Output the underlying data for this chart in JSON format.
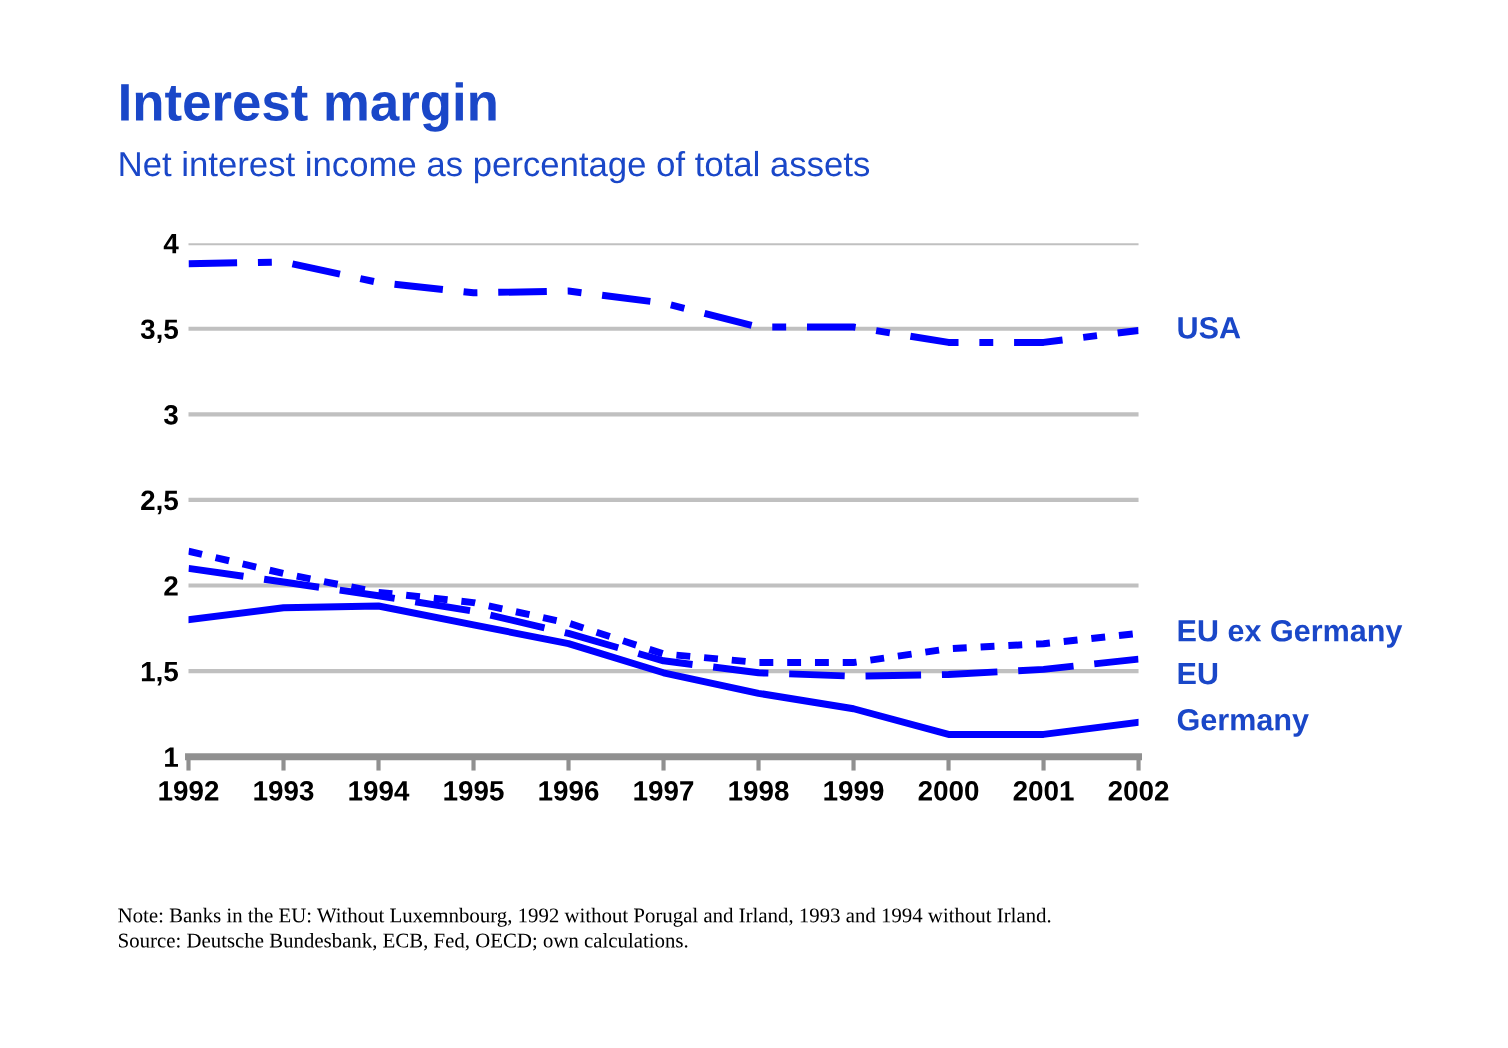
{
  "chart_data": {
    "type": "line",
    "title": "Interest margin",
    "subtitle": "Net interest income as percentage of total assets",
    "categories": [
      "1992",
      "1993",
      "1994",
      "1995",
      "1996",
      "1997",
      "1998",
      "1999",
      "2000",
      "2001",
      "2002"
    ],
    "series": [
      {
        "name": "USA",
        "color": "#0000ff",
        "line_style": "dashdot",
        "values": [
          3.88,
          3.89,
          3.77,
          3.71,
          3.72,
          3.65,
          3.51,
          3.51,
          3.42,
          3.42,
          3.49
        ]
      },
      {
        "name": "EU ex Germany",
        "color": "#0000ff",
        "line_style": "dotted",
        "values": [
          2.2,
          2.07,
          1.96,
          1.9,
          1.78,
          1.6,
          1.55,
          1.55,
          1.63,
          1.66,
          1.72
        ]
      },
      {
        "name": "EU",
        "color": "#0000ff",
        "line_style": "dashed",
        "values": [
          2.1,
          2.02,
          1.94,
          1.85,
          1.72,
          1.56,
          1.49,
          1.47,
          1.48,
          1.51,
          1.57
        ]
      },
      {
        "name": "Germany",
        "color": "#0000ff",
        "line_style": "solid",
        "values": [
          1.8,
          1.87,
          1.88,
          1.77,
          1.66,
          1.49,
          1.37,
          1.28,
          1.13,
          1.13,
          1.2
        ]
      }
    ],
    "ylim": [
      1,
      4
    ],
    "yticks": [
      {
        "value": 1,
        "label": "1"
      },
      {
        "value": 1.5,
        "label": "1,5"
      },
      {
        "value": 2,
        "label": "2"
      },
      {
        "value": 2.5,
        "label": "2,5"
      },
      {
        "value": 3,
        "label": "3"
      },
      {
        "value": 3.5,
        "label": "3,5"
      },
      {
        "value": 4,
        "label": "4"
      }
    ],
    "grid": "y",
    "legend": false,
    "marker": "none",
    "annotations": [
      "Note: Banks in the EU: Without Luxemnbourg, 1992 without Porugal and Irland, 1993 and 1994 without Irland.",
      "Source: Deutsche Bundesbank, ECB, Fed, OECD; own calculations."
    ]
  }
}
